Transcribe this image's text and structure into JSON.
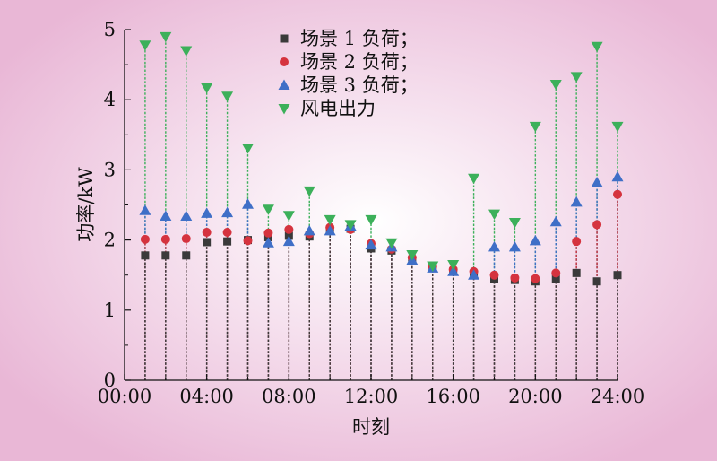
{
  "chart_data": {
    "type": "scatter",
    "title": "",
    "xlabel": "时刻",
    "ylabel": "功率/kW",
    "xlim": [
      0,
      24
    ],
    "ylim": [
      0,
      5
    ],
    "x_ticks": [
      "00:00",
      "04:00",
      "08:00",
      "12:00",
      "16:00",
      "20:00",
      "24:00"
    ],
    "y_ticks": [
      "0",
      "1",
      "2",
      "3",
      "4",
      "5"
    ],
    "grid": false,
    "legend_position": "top-center",
    "x": [
      1,
      2,
      3,
      4,
      5,
      6,
      7,
      8,
      9,
      10,
      11,
      12,
      13,
      14,
      15,
      16,
      17,
      18,
      19,
      20,
      21,
      22,
      23,
      24
    ],
    "series": [
      {
        "name": "场景 1 负荷；",
        "marker": "square",
        "color": "#3a3a3a",
        "values": [
          1.78,
          1.78,
          1.78,
          1.97,
          1.98,
          2.0,
          2.04,
          2.06,
          2.05,
          2.13,
          2.16,
          1.88,
          1.85,
          1.72,
          1.6,
          1.55,
          1.5,
          1.45,
          1.43,
          1.41,
          1.45,
          1.53,
          1.41,
          1.5
        ]
      },
      {
        "name": "场景 2 负荷；",
        "marker": "circle",
        "color": "#d5333e",
        "values": [
          2.01,
          2.01,
          2.02,
          2.11,
          2.11,
          1.99,
          2.1,
          2.15,
          2.09,
          2.18,
          2.15,
          1.95,
          1.87,
          1.75,
          1.62,
          1.58,
          1.55,
          1.5,
          1.46,
          1.45,
          1.53,
          1.98,
          2.22,
          2.65
        ]
      },
      {
        "name": "场景 3 负荷；",
        "marker": "triangle-up",
        "color": "#3f6fc7",
        "values": [
          2.42,
          2.34,
          2.34,
          2.38,
          2.39,
          2.51,
          1.96,
          1.98,
          2.13,
          2.13,
          2.2,
          1.93,
          1.9,
          1.71,
          1.6,
          1.55,
          1.5,
          1.9,
          1.9,
          1.99,
          2.26,
          2.54,
          2.82,
          2.9
        ]
      },
      {
        "name": "风电出力",
        "marker": "triangle-down",
        "color": "#3cb05a",
        "values": [
          4.78,
          4.9,
          4.7,
          4.17,
          4.05,
          3.31,
          2.44,
          2.35,
          2.7,
          2.29,
          2.22,
          2.29,
          1.96,
          1.79,
          1.63,
          1.65,
          2.88,
          2.37,
          2.25,
          3.62,
          4.22,
          4.33,
          4.76,
          3.62
        ]
      }
    ]
  }
}
